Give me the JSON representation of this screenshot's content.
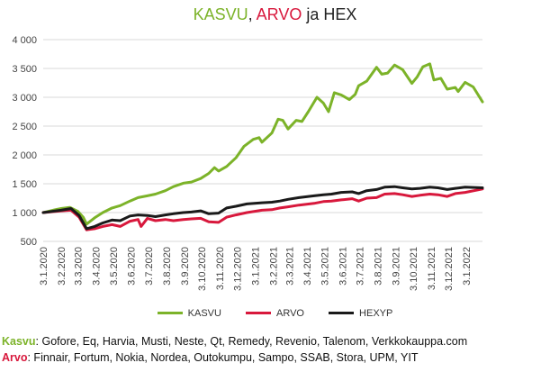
{
  "chart_data": {
    "type": "line",
    "title_parts": [
      {
        "text": "KASVU",
        "color": "#7cb329"
      },
      {
        "text": ", ",
        "color": "#222222"
      },
      {
        "text": "ARVO",
        "color": "#d8183c"
      },
      {
        "text": " ja HEX",
        "color": "#222222"
      }
    ],
    "xlabel": "",
    "ylabel": "",
    "ylim": [
      500,
      4000
    ],
    "y_ticks": [
      500,
      1000,
      1500,
      2000,
      2500,
      3000,
      3500,
      4000
    ],
    "y_tick_labels": [
      "500",
      "1 000",
      "1 500",
      "2 000",
      "2 500",
      "3 000",
      "3 500",
      "4 000"
    ],
    "grid": "horizontal",
    "legend_position": "bottom",
    "x_ticks": [
      "3.1.2020",
      "3.2.2020",
      "3.3.2020",
      "3.4.2020",
      "3.5.2020",
      "3.6.2020",
      "3.7.2020",
      "3.8.2020",
      "3.9.2020",
      "3.10.2020",
      "3.11.2020",
      "3.12.2020",
      "3.1.2021",
      "3.2.2021",
      "3.3.2021",
      "3.4.2021",
      "3.5.2021",
      "3.6.2021",
      "3.7.2021",
      "3.8.2021",
      "3.9.2021",
      "3.10.2021",
      "3.11.2021",
      "3.12.2021",
      "3.1.2022"
    ],
    "x_start": "2020-01-03",
    "x_end": "2022-01-31",
    "series": [
      {
        "name": "KASVU",
        "color": "#7cb329",
        "points": [
          [
            "2020-01-03",
            1000
          ],
          [
            "2020-01-20",
            1040
          ],
          [
            "2020-02-03",
            1070
          ],
          [
            "2020-02-18",
            1090
          ],
          [
            "2020-03-03",
            1020
          ],
          [
            "2020-03-12",
            920
          ],
          [
            "2020-03-18",
            800
          ],
          [
            "2020-04-01",
            910
          ],
          [
            "2020-04-15",
            1000
          ],
          [
            "2020-05-01",
            1080
          ],
          [
            "2020-05-15",
            1120
          ],
          [
            "2020-06-01",
            1200
          ],
          [
            "2020-06-15",
            1260
          ],
          [
            "2020-07-01",
            1290
          ],
          [
            "2020-07-15",
            1320
          ],
          [
            "2020-08-01",
            1380
          ],
          [
            "2020-08-15",
            1450
          ],
          [
            "2020-09-01",
            1510
          ],
          [
            "2020-09-15",
            1530
          ],
          [
            "2020-10-01",
            1590
          ],
          [
            "2020-10-15",
            1680
          ],
          [
            "2020-10-25",
            1780
          ],
          [
            "2020-11-01",
            1720
          ],
          [
            "2020-11-15",
            1800
          ],
          [
            "2020-12-01",
            1950
          ],
          [
            "2020-12-15",
            2150
          ],
          [
            "2020-12-31",
            2270
          ],
          [
            "2021-01-10",
            2300
          ],
          [
            "2021-01-15",
            2220
          ],
          [
            "2021-02-01",
            2380
          ],
          [
            "2021-02-12",
            2620
          ],
          [
            "2021-02-20",
            2600
          ],
          [
            "2021-03-01",
            2450
          ],
          [
            "2021-03-15",
            2600
          ],
          [
            "2021-03-25",
            2580
          ],
          [
            "2021-04-05",
            2750
          ],
          [
            "2021-04-20",
            3000
          ],
          [
            "2021-05-01",
            2900
          ],
          [
            "2021-05-10",
            2750
          ],
          [
            "2021-05-20",
            3080
          ],
          [
            "2021-06-01",
            3040
          ],
          [
            "2021-06-15",
            2960
          ],
          [
            "2021-06-25",
            3050
          ],
          [
            "2021-07-01",
            3200
          ],
          [
            "2021-07-15",
            3280
          ],
          [
            "2021-08-01",
            3520
          ],
          [
            "2021-08-10",
            3400
          ],
          [
            "2021-08-20",
            3420
          ],
          [
            "2021-09-01",
            3560
          ],
          [
            "2021-09-15",
            3480
          ],
          [
            "2021-10-01",
            3240
          ],
          [
            "2021-10-10",
            3350
          ],
          [
            "2021-10-20",
            3530
          ],
          [
            "2021-11-01",
            3580
          ],
          [
            "2021-11-08",
            3300
          ],
          [
            "2021-11-20",
            3330
          ],
          [
            "2021-12-01",
            3140
          ],
          [
            "2021-12-15",
            3170
          ],
          [
            "2021-12-20",
            3100
          ],
          [
            "2022-01-01",
            3260
          ],
          [
            "2022-01-15",
            3180
          ],
          [
            "2022-01-31",
            2920
          ]
        ]
      },
      {
        "name": "ARVO",
        "color": "#d8183c",
        "points": [
          [
            "2020-01-03",
            1000
          ],
          [
            "2020-02-03",
            1030
          ],
          [
            "2020-02-20",
            1040
          ],
          [
            "2020-03-05",
            920
          ],
          [
            "2020-03-18",
            700
          ],
          [
            "2020-04-01",
            720
          ],
          [
            "2020-04-15",
            760
          ],
          [
            "2020-05-01",
            790
          ],
          [
            "2020-05-15",
            760
          ],
          [
            "2020-06-01",
            850
          ],
          [
            "2020-06-15",
            880
          ],
          [
            "2020-06-20",
            760
          ],
          [
            "2020-07-01",
            900
          ],
          [
            "2020-07-15",
            860
          ],
          [
            "2020-08-01",
            880
          ],
          [
            "2020-08-15",
            860
          ],
          [
            "2020-09-01",
            880
          ],
          [
            "2020-09-15",
            890
          ],
          [
            "2020-10-01",
            900
          ],
          [
            "2020-10-15",
            840
          ],
          [
            "2020-11-01",
            830
          ],
          [
            "2020-11-15",
            920
          ],
          [
            "2020-12-01",
            960
          ],
          [
            "2020-12-20",
            1000
          ],
          [
            "2021-01-15",
            1040
          ],
          [
            "2021-02-01",
            1050
          ],
          [
            "2021-02-15",
            1080
          ],
          [
            "2021-03-01",
            1100
          ],
          [
            "2021-03-20",
            1130
          ],
          [
            "2021-04-15",
            1160
          ],
          [
            "2021-05-01",
            1190
          ],
          [
            "2021-05-15",
            1200
          ],
          [
            "2021-06-01",
            1220
          ],
          [
            "2021-06-20",
            1240
          ],
          [
            "2021-07-01",
            1200
          ],
          [
            "2021-07-15",
            1250
          ],
          [
            "2021-08-01",
            1260
          ],
          [
            "2021-08-15",
            1320
          ],
          [
            "2021-09-01",
            1330
          ],
          [
            "2021-09-15",
            1310
          ],
          [
            "2021-10-01",
            1280
          ],
          [
            "2021-10-15",
            1300
          ],
          [
            "2021-11-01",
            1320
          ],
          [
            "2021-11-15",
            1310
          ],
          [
            "2021-12-01",
            1280
          ],
          [
            "2021-12-15",
            1330
          ],
          [
            "2022-01-01",
            1350
          ],
          [
            "2022-01-31",
            1410
          ]
        ]
      },
      {
        "name": "HEXYP",
        "color": "#1a1a1a",
        "points": [
          [
            "2020-01-03",
            1000
          ],
          [
            "2020-02-03",
            1040
          ],
          [
            "2020-02-20",
            1070
          ],
          [
            "2020-03-05",
            950
          ],
          [
            "2020-03-18",
            720
          ],
          [
            "2020-04-01",
            760
          ],
          [
            "2020-04-15",
            820
          ],
          [
            "2020-05-01",
            870
          ],
          [
            "2020-05-15",
            860
          ],
          [
            "2020-06-01",
            940
          ],
          [
            "2020-06-15",
            960
          ],
          [
            "2020-07-01",
            950
          ],
          [
            "2020-07-15",
            930
          ],
          [
            "2020-08-01",
            960
          ],
          [
            "2020-08-15",
            980
          ],
          [
            "2020-09-01",
            1000
          ],
          [
            "2020-09-15",
            1010
          ],
          [
            "2020-10-01",
            1030
          ],
          [
            "2020-10-15",
            980
          ],
          [
            "2020-11-01",
            990
          ],
          [
            "2020-11-15",
            1080
          ],
          [
            "2020-12-01",
            1110
          ],
          [
            "2020-12-20",
            1150
          ],
          [
            "2021-01-15",
            1170
          ],
          [
            "2021-02-01",
            1180
          ],
          [
            "2021-02-15",
            1200
          ],
          [
            "2021-03-01",
            1230
          ],
          [
            "2021-03-20",
            1260
          ],
          [
            "2021-04-15",
            1290
          ],
          [
            "2021-05-01",
            1310
          ],
          [
            "2021-05-15",
            1320
          ],
          [
            "2021-06-01",
            1350
          ],
          [
            "2021-06-20",
            1360
          ],
          [
            "2021-07-01",
            1330
          ],
          [
            "2021-07-15",
            1380
          ],
          [
            "2021-08-01",
            1400
          ],
          [
            "2021-08-15",
            1440
          ],
          [
            "2021-09-01",
            1450
          ],
          [
            "2021-09-15",
            1430
          ],
          [
            "2021-10-01",
            1410
          ],
          [
            "2021-10-15",
            1420
          ],
          [
            "2021-11-01",
            1440
          ],
          [
            "2021-11-15",
            1430
          ],
          [
            "2021-12-01",
            1400
          ],
          [
            "2021-12-15",
            1420
          ],
          [
            "2022-01-01",
            1440
          ],
          [
            "2022-01-31",
            1430
          ]
        ]
      }
    ]
  },
  "footnotes": {
    "kasvu_label": "Kasvu",
    "kasvu_text": ": Gofore, Eq, Harvia, Musti, Neste, Qt, Remedy, Revenio, Talenom, Verkkokauppa.com",
    "arvo_label": "Arvo",
    "arvo_text": ": Finnair, Fortum, Nokia, Nordea, Outokumpu, Sampo, SSAB, Stora, UPM, YIT"
  }
}
